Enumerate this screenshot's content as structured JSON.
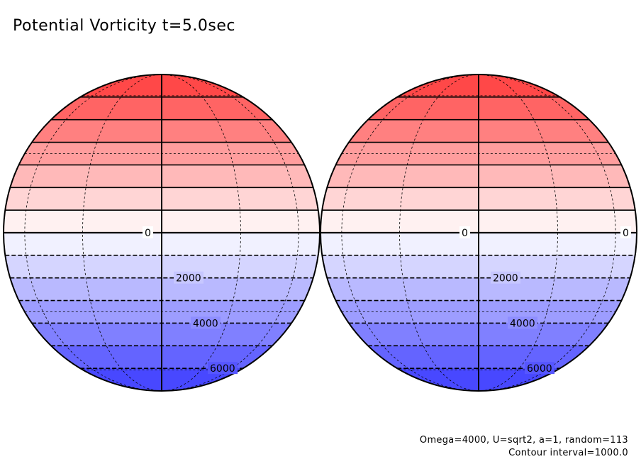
{
  "title": "Potential Vorticity t=5.0sec",
  "footer_line1": "Omega=4000, U=sqrt2, a=1, random=113",
  "footer_line2": "Contour interval=1000.0",
  "chart_data": {
    "type": "filled-contour-map",
    "projection": "orthographic, two hemispheres side by side",
    "title": "Potential Vorticity t=5.0sec",
    "contour_interval": 1000.0,
    "colormap": {
      "positive": "#ff3a3a",
      "zero": "#ffffff",
      "negative": "#3a3aff"
    },
    "contour_levels": [
      -7000,
      -6000,
      -5000,
      -4000,
      -3000,
      -2000,
      -1000,
      0,
      1000,
      2000,
      3000,
      4000,
      5000,
      6000,
      7000
    ],
    "panels": [
      {
        "name": "left",
        "contour_labels": [
          {
            "text": "0",
            "value": 0
          },
          {
            "text": "2000",
            "value": -2000
          },
          {
            "text": "4000",
            "value": -4000
          },
          {
            "text": "6000",
            "value": -6000
          }
        ]
      },
      {
        "name": "right",
        "contour_labels": [
          {
            "text": "0",
            "value": 0
          },
          {
            "text": "2000",
            "value": -2000
          },
          {
            "text": "4000",
            "value": -4000
          },
          {
            "text": "6000",
            "value": -6000
          },
          {
            "text": "0",
            "value": 0
          }
        ]
      }
    ]
  }
}
